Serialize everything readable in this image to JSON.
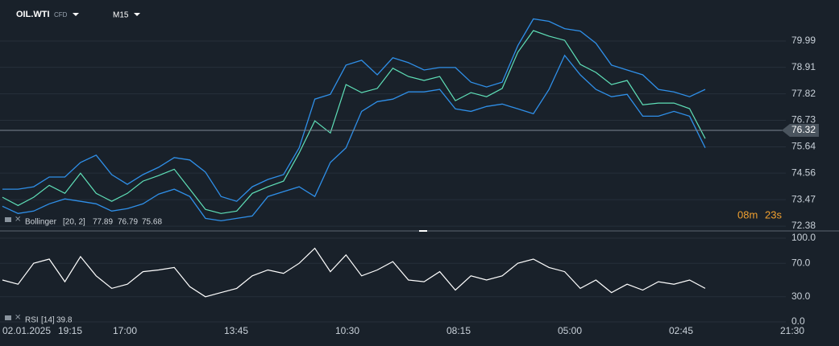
{
  "header": {
    "symbol": "OIL.WTI",
    "instrument_type": "CFD",
    "timeframe": "M15"
  },
  "timer": {
    "minutes": "08m",
    "seconds": "23s"
  },
  "chart_data": [
    {
      "type": "line",
      "indicator": {
        "name": "Bollinger",
        "params": "[20, 2]",
        "values": [
          77.89,
          76.79,
          75.68
        ]
      },
      "values": [
        73.57,
        73.23,
        73.57,
        74.06,
        73.73,
        74.56,
        73.73,
        73.4,
        73.73,
        74.23,
        74.46,
        74.72,
        73.9,
        73.07,
        72.9,
        73.0,
        73.73,
        74.0,
        74.23,
        75.39,
        76.71,
        76.21,
        78.2,
        77.87,
        78.04,
        78.87,
        78.53,
        78.37,
        78.53,
        77.54,
        77.87,
        77.7,
        78.04,
        79.53,
        80.42,
        80.19,
        80.02,
        79.03,
        78.7,
        78.2,
        78.37,
        77.37,
        77.44,
        77.44,
        77.21,
        75.98
      ],
      "upper": [
        73.9,
        73.9,
        74.0,
        74.4,
        74.4,
        75.0,
        75.3,
        74.5,
        74.1,
        74.5,
        74.8,
        75.2,
        75.1,
        74.6,
        73.6,
        73.4,
        74.0,
        74.3,
        74.5,
        75.6,
        77.6,
        77.8,
        79.0,
        79.2,
        78.6,
        79.3,
        79.1,
        78.8,
        78.9,
        78.9,
        78.3,
        78.1,
        78.3,
        79.8,
        80.9,
        80.8,
        80.5,
        80.4,
        79.9,
        79.0,
        78.8,
        78.6,
        78.0,
        77.9,
        77.7,
        78.0
      ],
      "lower": [
        73.2,
        72.9,
        73.0,
        73.3,
        73.5,
        73.4,
        73.3,
        73.0,
        73.1,
        73.3,
        73.7,
        73.9,
        73.6,
        72.7,
        72.6,
        72.7,
        72.8,
        73.6,
        73.8,
        74.0,
        73.6,
        75.0,
        75.6,
        77.1,
        77.5,
        77.6,
        77.9,
        77.9,
        78.0,
        77.2,
        77.1,
        77.3,
        77.4,
        77.2,
        77.0,
        78.0,
        79.4,
        78.6,
        78.0,
        77.7,
        77.8,
        76.9,
        76.9,
        77.1,
        76.9,
        75.6
      ],
      "color": "#5fe0b8",
      "band_color": "#2f8fe8",
      "last_price": 76.32,
      "ylim": [
        72.25,
        81.18
      ],
      "yticks": [
        79.99,
        78.91,
        77.82,
        76.73,
        75.64,
        74.56,
        73.47,
        72.38
      ],
      "grid": true
    },
    {
      "type": "line",
      "indicator": {
        "name": "RSI",
        "params": "[14]",
        "value": 39.8
      },
      "values": [
        50,
        45,
        70,
        75,
        48,
        78,
        55,
        40,
        45,
        60,
        62,
        65,
        42,
        30,
        35,
        40,
        55,
        62,
        58,
        70,
        88,
        60,
        80,
        55,
        62,
        72,
        50,
        48,
        60,
        38,
        55,
        50,
        55,
        70,
        75,
        65,
        60,
        40,
        50,
        35,
        45,
        38,
        48,
        45,
        50,
        40
      ],
      "color": "#ffffff",
      "ylim": [
        0,
        100
      ],
      "yticks": [
        {
          "value": 100,
          "label": "100.0"
        },
        {
          "value": 70,
          "label": "70.0"
        },
        {
          "value": 30,
          "label": "30.0"
        },
        {
          "value": 0,
          "label": "0.0"
        }
      ],
      "grid": true
    }
  ],
  "xlabels": [
    "02.01.2025",
    "19:15",
    "17:00",
    "13:45",
    "10:30",
    "08:15",
    "05:00",
    "02:45",
    "21:30"
  ]
}
